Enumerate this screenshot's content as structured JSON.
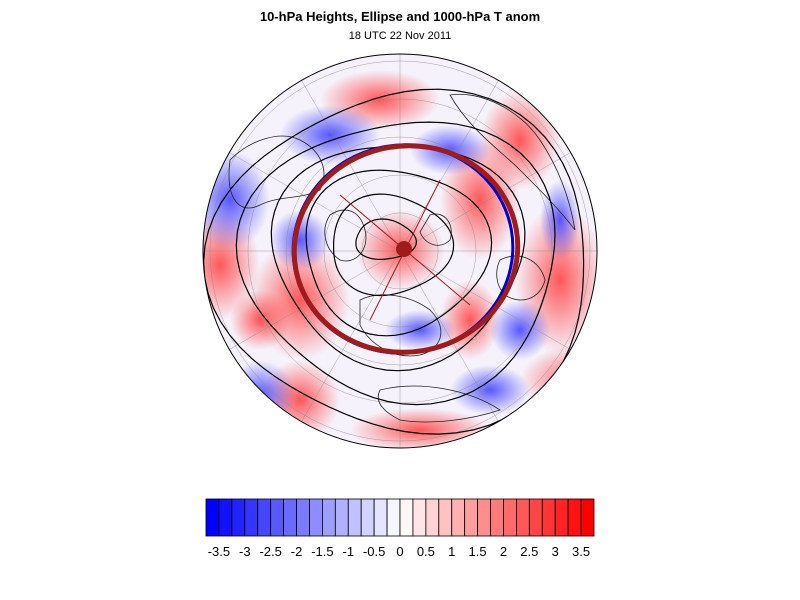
{
  "title": "10-hPa Heights, Ellipse and 1000-hPa T anom",
  "subtitle": "18 UTC 22 Nov 2011",
  "colorbar": {
    "levels": [
      -3.75,
      -3.5,
      -3.25,
      -3,
      -2.75,
      -2.5,
      -2.25,
      -2,
      -1.75,
      -1.5,
      -1.25,
      -1,
      -0.75,
      -0.5,
      -0.25,
      0,
      0.25,
      0.5,
      0.75,
      1,
      1.25,
      1.5,
      1.75,
      2,
      2.25,
      2.5,
      2.75,
      3,
      3.25,
      3.5,
      3.75
    ],
    "tick_labels": [
      "-3.5",
      "-3",
      "-2.5",
      "-2",
      "-1.5",
      "-1",
      "-0.5",
      "0",
      "0.5",
      "1",
      "1.5",
      "2",
      "2.5",
      "3",
      "3.5"
    ],
    "tick_values": [
      -3.5,
      -3,
      -2.5,
      -2,
      -1.5,
      -1,
      -0.5,
      0,
      0.5,
      1,
      1.5,
      2,
      2.5,
      3,
      3.5
    ],
    "min_color": "#0000ff",
    "mid_color": "#ffffff",
    "max_color": "#ff0000"
  },
  "map": {
    "projection": "north-polar-stereographic",
    "field": "1000-hPa T anom",
    "contours": "10-hPa Heights",
    "ellipse_color": "#a01c1c",
    "ellipse_edge_color": "#0000cc",
    "contour_color": "#000000"
  }
}
